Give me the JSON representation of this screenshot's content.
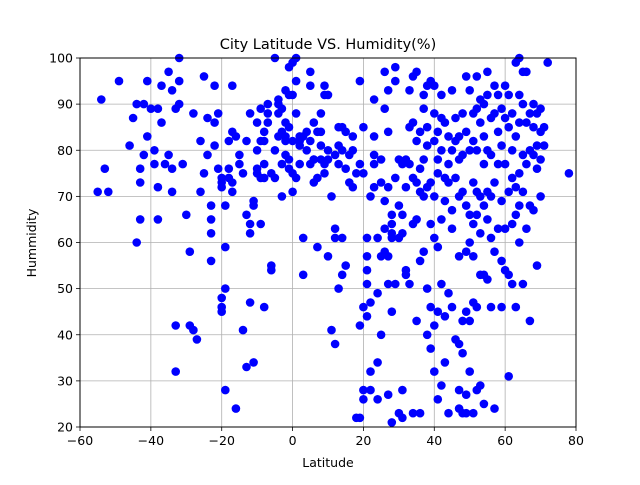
{
  "chart_data": {
    "type": "scatter",
    "title": "City Latitude VS. Humidity(%)",
    "xlabel": "Latitude",
    "ylabel": "Hummidity",
    "xlim": [
      -60,
      80
    ],
    "ylim": [
      20,
      100
    ],
    "xticks": [
      "−60",
      "−40",
      "−20",
      "0",
      "20",
      "40",
      "60",
      "80"
    ],
    "yticks": [
      "20",
      "30",
      "40",
      "50",
      "60",
      "70",
      "80",
      "90",
      "100"
    ],
    "grid": true,
    "legend": "none",
    "marker_color": "#0000ff",
    "points": [
      [
        -55,
        71
      ],
      [
        -54,
        91
      ],
      [
        -53,
        76
      ],
      [
        -52,
        71
      ],
      [
        -49,
        95
      ],
      [
        -46,
        81
      ],
      [
        -45,
        87
      ],
      [
        -44,
        90
      ],
      [
        -44,
        60
      ],
      [
        -43,
        65
      ],
      [
        -43,
        73
      ],
      [
        -43,
        76
      ],
      [
        -42,
        79
      ],
      [
        -42,
        90
      ],
      [
        -41,
        95
      ],
      [
        -41,
        83
      ],
      [
        -40,
        89
      ],
      [
        -39,
        80
      ],
      [
        -39,
        77
      ],
      [
        -38,
        72
      ],
      [
        -38,
        65
      ],
      [
        -38,
        89
      ],
      [
        -37,
        94
      ],
      [
        -37,
        86
      ],
      [
        -36,
        77
      ],
      [
        -35,
        97
      ],
      [
        -35,
        79
      ],
      [
        -34,
        76
      ],
      [
        -34,
        71
      ],
      [
        -34,
        93
      ],
      [
        -33,
        32
      ],
      [
        -33,
        42
      ],
      [
        -33,
        89
      ],
      [
        -32,
        100
      ],
      [
        -32,
        95
      ],
      [
        -32,
        90
      ],
      [
        -31,
        77
      ],
      [
        -30,
        66
      ],
      [
        -29,
        58
      ],
      [
        -29,
        42
      ],
      [
        -28,
        41
      ],
      [
        -28,
        88
      ],
      [
        -27,
        39
      ],
      [
        -26,
        82
      ],
      [
        -26,
        71
      ],
      [
        -25,
        75
      ],
      [
        -25,
        96
      ],
      [
        -24,
        79
      ],
      [
        -24,
        87
      ],
      [
        -23,
        68
      ],
      [
        -23,
        56
      ],
      [
        -23,
        65
      ],
      [
        -23,
        62
      ],
      [
        -22,
        81
      ],
      [
        -22,
        94
      ],
      [
        -22,
        86
      ],
      [
        -21,
        88
      ],
      [
        -21,
        76
      ],
      [
        -20,
        74
      ],
      [
        -20,
        73
      ],
      [
        -20,
        72
      ],
      [
        -20,
        45
      ],
      [
        -20,
        46
      ],
      [
        -20,
        48
      ],
      [
        -19,
        50
      ],
      [
        -19,
        59
      ],
      [
        -19,
        28
      ],
      [
        -19,
        68
      ],
      [
        -18,
        76
      ],
      [
        -18,
        82
      ],
      [
        -18,
        74
      ],
      [
        -17,
        94
      ],
      [
        -17,
        84
      ],
      [
        -17,
        71
      ],
      [
        -17,
        73
      ],
      [
        -16,
        83
      ],
      [
        -16,
        24
      ],
      [
        -15,
        79
      ],
      [
        -15,
        77
      ],
      [
        -14,
        75
      ],
      [
        -14,
        41
      ],
      [
        -13,
        66
      ],
      [
        -13,
        33
      ],
      [
        -13,
        82
      ],
      [
        -12,
        64
      ],
      [
        -12,
        62
      ],
      [
        -12,
        47
      ],
      [
        -12,
        88
      ],
      [
        -11,
        34
      ],
      [
        -11,
        69
      ],
      [
        -11,
        68
      ],
      [
        -10,
        86
      ],
      [
        -10,
        80
      ],
      [
        -10,
        76
      ],
      [
        -10,
        75
      ],
      [
        -9,
        89
      ],
      [
        -9,
        82
      ],
      [
        -9,
        74
      ],
      [
        -9,
        64
      ],
      [
        -8,
        82
      ],
      [
        -8,
        77
      ],
      [
        -8,
        74
      ],
      [
        -8,
        46
      ],
      [
        -8,
        84
      ],
      [
        -7,
        88
      ],
      [
        -7,
        90
      ],
      [
        -7,
        86
      ],
      [
        -6,
        55
      ],
      [
        -6,
        75
      ],
      [
        -6,
        54
      ],
      [
        -5,
        80
      ],
      [
        -5,
        100
      ],
      [
        -5,
        74
      ],
      [
        -4,
        90
      ],
      [
        -4,
        91
      ],
      [
        -4,
        88
      ],
      [
        -4,
        83
      ],
      [
        -3,
        84
      ],
      [
        -3,
        77
      ],
      [
        -3,
        70
      ],
      [
        -3,
        89
      ],
      [
        -2,
        83
      ],
      [
        -2,
        86
      ],
      [
        -2,
        79
      ],
      [
        -2,
        82
      ],
      [
        -2,
        93
      ],
      [
        -1,
        98
      ],
      [
        -1,
        92
      ],
      [
        -1,
        85
      ],
      [
        -1,
        76
      ],
      [
        -1,
        78
      ],
      [
        0,
        99
      ],
      [
        0,
        92
      ],
      [
        0,
        82
      ],
      [
        0,
        75
      ],
      [
        0,
        71
      ],
      [
        1,
        100
      ],
      [
        1,
        95
      ],
      [
        1,
        88
      ],
      [
        1,
        74
      ],
      [
        2,
        83
      ],
      [
        2,
        81
      ],
      [
        2,
        77
      ],
      [
        2,
        82
      ],
      [
        3,
        61
      ],
      [
        3,
        83
      ],
      [
        3,
        53
      ],
      [
        4,
        84
      ],
      [
        4,
        80
      ],
      [
        5,
        97
      ],
      [
        5,
        77
      ],
      [
        5,
        94
      ],
      [
        5,
        82
      ],
      [
        6,
        78
      ],
      [
        6,
        78
      ],
      [
        6,
        73
      ],
      [
        6,
        86
      ],
      [
        7,
        74
      ],
      [
        7,
        59
      ],
      [
        7,
        84
      ],
      [
        8,
        84
      ],
      [
        8,
        78
      ],
      [
        8,
        88
      ],
      [
        8,
        81
      ],
      [
        9,
        94
      ],
      [
        9,
        92
      ],
      [
        9,
        77
      ],
      [
        9,
        75
      ],
      [
        10,
        92
      ],
      [
        10,
        80
      ],
      [
        10,
        78
      ],
      [
        10,
        57
      ],
      [
        11,
        70
      ],
      [
        11,
        41
      ],
      [
        12,
        61
      ],
      [
        12,
        79
      ],
      [
        12,
        63
      ],
      [
        12,
        38
      ],
      [
        13,
        81
      ],
      [
        13,
        85
      ],
      [
        13,
        50
      ],
      [
        13,
        77
      ],
      [
        14,
        85
      ],
      [
        14,
        80
      ],
      [
        14,
        53
      ],
      [
        14,
        61
      ],
      [
        15,
        55
      ],
      [
        15,
        84
      ],
      [
        15,
        76
      ],
      [
        16,
        79
      ],
      [
        16,
        73
      ],
      [
        17,
        80
      ],
      [
        17,
        83
      ],
      [
        17,
        72
      ],
      [
        18,
        22
      ],
      [
        18,
        75
      ],
      [
        19,
        95
      ],
      [
        19,
        77
      ],
      [
        19,
        42
      ],
      [
        19,
        22
      ],
      [
        20,
        85
      ],
      [
        20,
        75
      ],
      [
        20,
        46
      ],
      [
        20,
        28
      ],
      [
        20,
        26
      ],
      [
        21,
        57
      ],
      [
        21,
        51
      ],
      [
        21,
        54
      ],
      [
        21,
        44
      ],
      [
        21,
        61
      ],
      [
        22,
        28
      ],
      [
        22,
        32
      ],
      [
        22,
        47
      ],
      [
        22,
        70
      ],
      [
        23,
        83
      ],
      [
        23,
        91
      ],
      [
        23,
        79
      ],
      [
        23,
        77
      ],
      [
        23,
        72
      ],
      [
        24,
        61
      ],
      [
        24,
        49
      ],
      [
        24,
        34
      ],
      [
        24,
        26
      ],
      [
        25,
        78
      ],
      [
        25,
        73
      ],
      [
        25,
        40
      ],
      [
        25,
        57
      ],
      [
        26,
        97
      ],
      [
        26,
        89
      ],
      [
        26,
        69
      ],
      [
        26,
        63
      ],
      [
        26,
        58
      ],
      [
        27,
        93
      ],
      [
        27,
        84
      ],
      [
        27,
        72
      ],
      [
        27,
        57
      ],
      [
        27,
        51
      ],
      [
        27,
        27
      ],
      [
        28,
        66
      ],
      [
        28,
        61
      ],
      [
        28,
        62
      ],
      [
        28,
        64
      ],
      [
        28,
        45
      ],
      [
        28,
        21
      ],
      [
        29,
        98
      ],
      [
        29,
        95
      ],
      [
        29,
        74
      ],
      [
        29,
        51
      ],
      [
        30,
        78
      ],
      [
        30,
        68
      ],
      [
        30,
        61
      ],
      [
        30,
        23
      ],
      [
        31,
        77
      ],
      [
        31,
        66
      ],
      [
        31,
        62
      ],
      [
        31,
        28
      ],
      [
        31,
        22
      ],
      [
        32,
        78
      ],
      [
        32,
        72
      ],
      [
        32,
        54
      ],
      [
        32,
        53
      ],
      [
        33,
        85
      ],
      [
        33,
        93
      ],
      [
        33,
        77
      ],
      [
        33,
        51
      ],
      [
        34,
        86
      ],
      [
        34,
        96
      ],
      [
        34,
        74
      ],
      [
        34,
        64
      ],
      [
        34,
        23
      ],
      [
        35,
        97
      ],
      [
        35,
        82
      ],
      [
        35,
        73
      ],
      [
        35,
        65
      ],
      [
        35,
        43
      ],
      [
        36,
        71
      ],
      [
        36,
        76
      ],
      [
        36,
        56
      ],
      [
        36,
        23
      ],
      [
        36,
        84
      ],
      [
        37,
        92
      ],
      [
        37,
        89
      ],
      [
        37,
        78
      ],
      [
        37,
        70
      ],
      [
        37,
        58
      ],
      [
        38,
        94
      ],
      [
        38,
        85
      ],
      [
        38,
        81
      ],
      [
        38,
        72
      ],
      [
        38,
        50
      ],
      [
        38,
        40
      ],
      [
        39,
        95
      ],
      [
        39,
        73
      ],
      [
        39,
        64
      ],
      [
        39,
        46
      ],
      [
        39,
        37
      ],
      [
        40,
        94
      ],
      [
        40,
        88
      ],
      [
        40,
        82
      ],
      [
        40,
        70
      ],
      [
        40,
        61
      ],
      [
        40,
        42
      ],
      [
        40,
        32
      ],
      [
        41,
        84
      ],
      [
        41,
        78
      ],
      [
        41,
        75
      ],
      [
        41,
        59
      ],
      [
        41,
        45
      ],
      [
        41,
        26
      ],
      [
        42,
        92
      ],
      [
        42,
        87
      ],
      [
        42,
        80
      ],
      [
        42,
        65
      ],
      [
        42,
        51
      ],
      [
        42,
        29
      ],
      [
        43,
        86
      ],
      [
        43,
        74
      ],
      [
        43,
        69
      ],
      [
        43,
        44
      ],
      [
        43,
        34
      ],
      [
        44,
        83
      ],
      [
        44,
        77
      ],
      [
        44,
        73
      ],
      [
        44,
        49
      ],
      [
        44,
        23
      ],
      [
        45,
        93
      ],
      [
        45,
        80
      ],
      [
        45,
        67
      ],
      [
        45,
        63
      ],
      [
        45,
        46
      ],
      [
        46,
        87
      ],
      [
        46,
        82
      ],
      [
        46,
        74
      ],
      [
        46,
        39
      ],
      [
        47,
        83
      ],
      [
        47,
        78
      ],
      [
        47,
        70
      ],
      [
        47,
        57
      ],
      [
        47,
        38
      ],
      [
        47,
        28
      ],
      [
        47,
        24
      ],
      [
        48,
        88
      ],
      [
        48,
        79
      ],
      [
        48,
        71
      ],
      [
        48,
        43
      ],
      [
        48,
        36
      ],
      [
        48,
        23
      ],
      [
        49,
        96
      ],
      [
        49,
        84
      ],
      [
        49,
        68
      ],
      [
        49,
        58
      ],
      [
        49,
        45
      ],
      [
        49,
        27
      ],
      [
        49,
        23
      ],
      [
        50,
        93
      ],
      [
        50,
        80
      ],
      [
        50,
        66
      ],
      [
        50,
        60
      ],
      [
        50,
        43
      ],
      [
        50,
        32
      ],
      [
        51,
        88
      ],
      [
        51,
        82
      ],
      [
        51,
        73
      ],
      [
        51,
        64
      ],
      [
        51,
        57
      ],
      [
        51,
        47
      ],
      [
        51,
        23
      ],
      [
        52,
        96
      ],
      [
        52,
        89
      ],
      [
        52,
        80
      ],
      [
        52,
        71
      ],
      [
        52,
        66
      ],
      [
        52,
        46
      ],
      [
        52,
        28
      ],
      [
        53,
        91
      ],
      [
        53,
        86
      ],
      [
        53,
        70
      ],
      [
        53,
        62
      ],
      [
        53,
        53
      ],
      [
        53,
        29
      ],
      [
        54,
        90
      ],
      [
        54,
        83
      ],
      [
        54,
        77
      ],
      [
        54,
        68
      ],
      [
        54,
        53
      ],
      [
        54,
        25
      ],
      [
        55,
        97
      ],
      [
        55,
        92
      ],
      [
        55,
        80
      ],
      [
        55,
        71
      ],
      [
        55,
        65
      ],
      [
        55,
        52
      ],
      [
        56,
        87
      ],
      [
        56,
        79
      ],
      [
        56,
        70
      ],
      [
        56,
        61
      ],
      [
        56,
        46
      ],
      [
        57,
        94
      ],
      [
        57,
        88
      ],
      [
        57,
        73
      ],
      [
        57,
        58
      ],
      [
        57,
        24
      ],
      [
        58,
        92
      ],
      [
        58,
        84
      ],
      [
        58,
        77
      ],
      [
        58,
        63
      ],
      [
        59,
        89
      ],
      [
        59,
        81
      ],
      [
        59,
        69
      ],
      [
        59,
        56
      ],
      [
        59,
        46
      ],
      [
        60,
        94
      ],
      [
        60,
        87
      ],
      [
        60,
        77
      ],
      [
        60,
        63
      ],
      [
        60,
        54
      ],
      [
        61,
        92
      ],
      [
        61,
        85
      ],
      [
        61,
        71
      ],
      [
        61,
        53
      ],
      [
        61,
        31
      ],
      [
        62,
        88
      ],
      [
        62,
        80
      ],
      [
        62,
        74
      ],
      [
        62,
        64
      ],
      [
        62,
        51
      ],
      [
        63,
        99
      ],
      [
        63,
        83
      ],
      [
        63,
        72
      ],
      [
        63,
        66
      ],
      [
        63,
        46
      ],
      [
        64,
        100
      ],
      [
        64,
        92
      ],
      [
        64,
        86
      ],
      [
        64,
        75
      ],
      [
        64,
        68
      ],
      [
        64,
        60
      ],
      [
        65,
        97
      ],
      [
        65,
        90
      ],
      [
        65,
        79
      ],
      [
        65,
        71
      ],
      [
        65,
        51
      ],
      [
        66,
        97
      ],
      [
        66,
        86
      ],
      [
        66,
        77
      ],
      [
        66,
        63
      ],
      [
        67,
        88
      ],
      [
        67,
        80
      ],
      [
        67,
        68
      ],
      [
        67,
        43
      ],
      [
        68,
        90
      ],
      [
        68,
        85
      ],
      [
        68,
        79
      ],
      [
        68,
        67
      ],
      [
        69,
        88
      ],
      [
        69,
        81
      ],
      [
        69,
        76
      ],
      [
        69,
        55
      ],
      [
        70,
        89
      ],
      [
        70,
        84
      ],
      [
        70,
        78
      ],
      [
        70,
        70
      ],
      [
        71,
        85
      ],
      [
        71,
        81
      ],
      [
        72,
        99
      ],
      [
        78,
        75
      ]
    ]
  }
}
